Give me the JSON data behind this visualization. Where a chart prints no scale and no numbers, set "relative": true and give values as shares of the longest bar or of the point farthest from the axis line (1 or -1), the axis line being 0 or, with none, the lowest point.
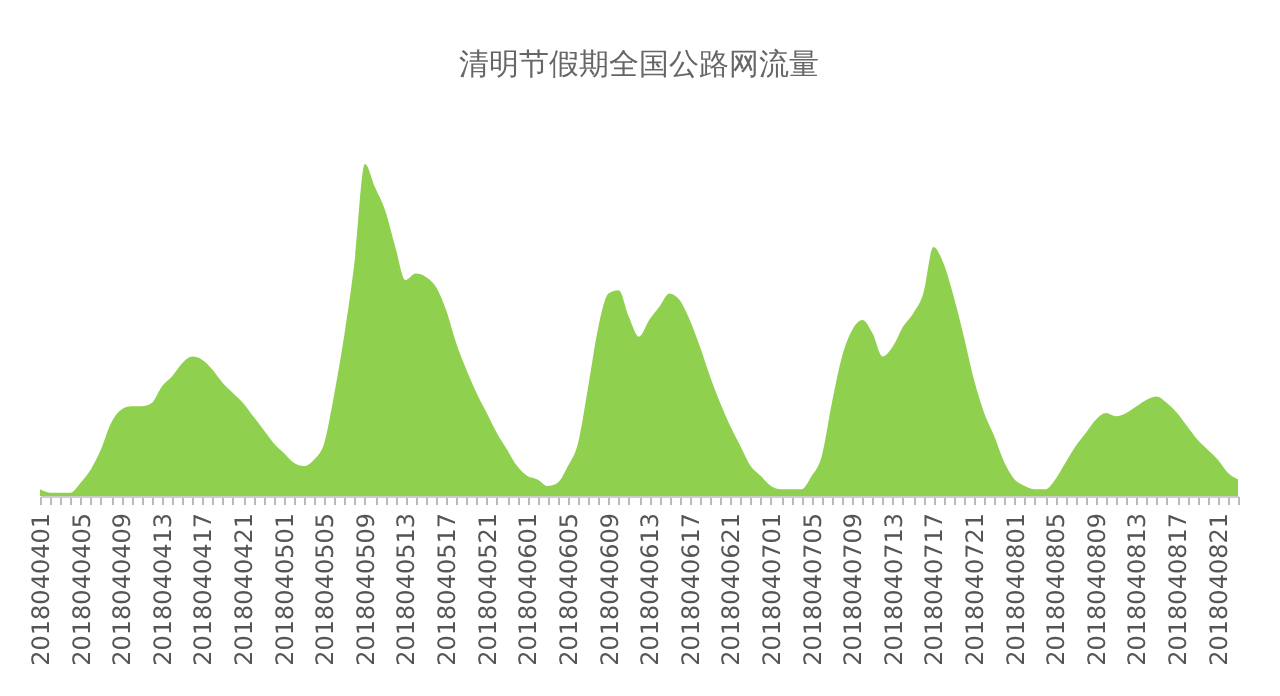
{
  "chart_data": {
    "type": "area",
    "title": "清明节假期全国公路网流量",
    "relative": true,
    "color": "#8fd14f",
    "grid": false,
    "categories": [
      "2018040401",
      null,
      null,
      null,
      "2018040405",
      null,
      null,
      null,
      "2018040409",
      null,
      null,
      null,
      "2018040413",
      null,
      null,
      null,
      "2018040417",
      null,
      null,
      null,
      "2018040421",
      null,
      null,
      null,
      "2018040501",
      null,
      null,
      null,
      "2018040505",
      null,
      null,
      null,
      "2018040509",
      null,
      null,
      null,
      "2018040513",
      null,
      null,
      null,
      "2018040517",
      null,
      null,
      null,
      "2018040521",
      null,
      null,
      null,
      "2018040601",
      null,
      null,
      null,
      "2018040605",
      null,
      null,
      null,
      "2018040609",
      null,
      null,
      null,
      "2018040613",
      null,
      null,
      null,
      "2018040617",
      null,
      null,
      null,
      "2018040621",
      null,
      null,
      null,
      "2018040701",
      null,
      null,
      null,
      "2018040705",
      null,
      null,
      null,
      "2018040709",
      null,
      null,
      null,
      "2018040713",
      null,
      null,
      null,
      "2018040717",
      null,
      null,
      null,
      "2018040721",
      null,
      null,
      null,
      "2018040801",
      null,
      null,
      null,
      "2018040805",
      null,
      null,
      null,
      "2018040809",
      null,
      null,
      null,
      "2018040813",
      null,
      null,
      null,
      "2018040817",
      null,
      null,
      null,
      "2018040821",
      null,
      null
    ],
    "values": [
      0.02,
      0.01,
      0.01,
      0.01,
      0.04,
      0.08,
      0.14,
      0.22,
      0.26,
      0.27,
      0.27,
      0.28,
      0.33,
      0.36,
      0.4,
      0.42,
      0.41,
      0.38,
      0.34,
      0.31,
      0.28,
      0.24,
      0.2,
      0.16,
      0.13,
      0.1,
      0.09,
      0.11,
      0.16,
      0.31,
      0.49,
      0.71,
      1,
      0.93,
      0.86,
      0.75,
      0.65,
      0.67,
      0.66,
      0.63,
      0.56,
      0.46,
      0.38,
      0.31,
      0.25,
      0.19,
      0.14,
      0.09,
      0.06,
      0.05,
      0.03,
      0.04,
      0.09,
      0.16,
      0.33,
      0.51,
      0.61,
      0.62,
      0.54,
      0.48,
      0.53,
      0.57,
      0.61,
      0.59,
      0.53,
      0.45,
      0.36,
      0.28,
      0.21,
      0.15,
      0.09,
      0.06,
      0.03,
      0.02,
      0.02,
      0.02,
      0.06,
      0.12,
      0.28,
      0.42,
      0.5,
      0.53,
      0.49,
      0.42,
      0.45,
      0.51,
      0.55,
      0.61,
      0.75,
      0.7,
      0.6,
      0.48,
      0.35,
      0.25,
      0.18,
      0.1,
      0.05,
      0.03,
      0.02,
      0.02,
      0.05,
      0.1,
      0.15,
      0.19,
      0.23,
      0.25,
      0.24,
      0.25,
      0.27,
      0.29,
      0.3,
      0.28,
      0.25,
      0.21,
      0.17,
      0.14,
      0.11,
      0.07,
      0.05
    ]
  }
}
